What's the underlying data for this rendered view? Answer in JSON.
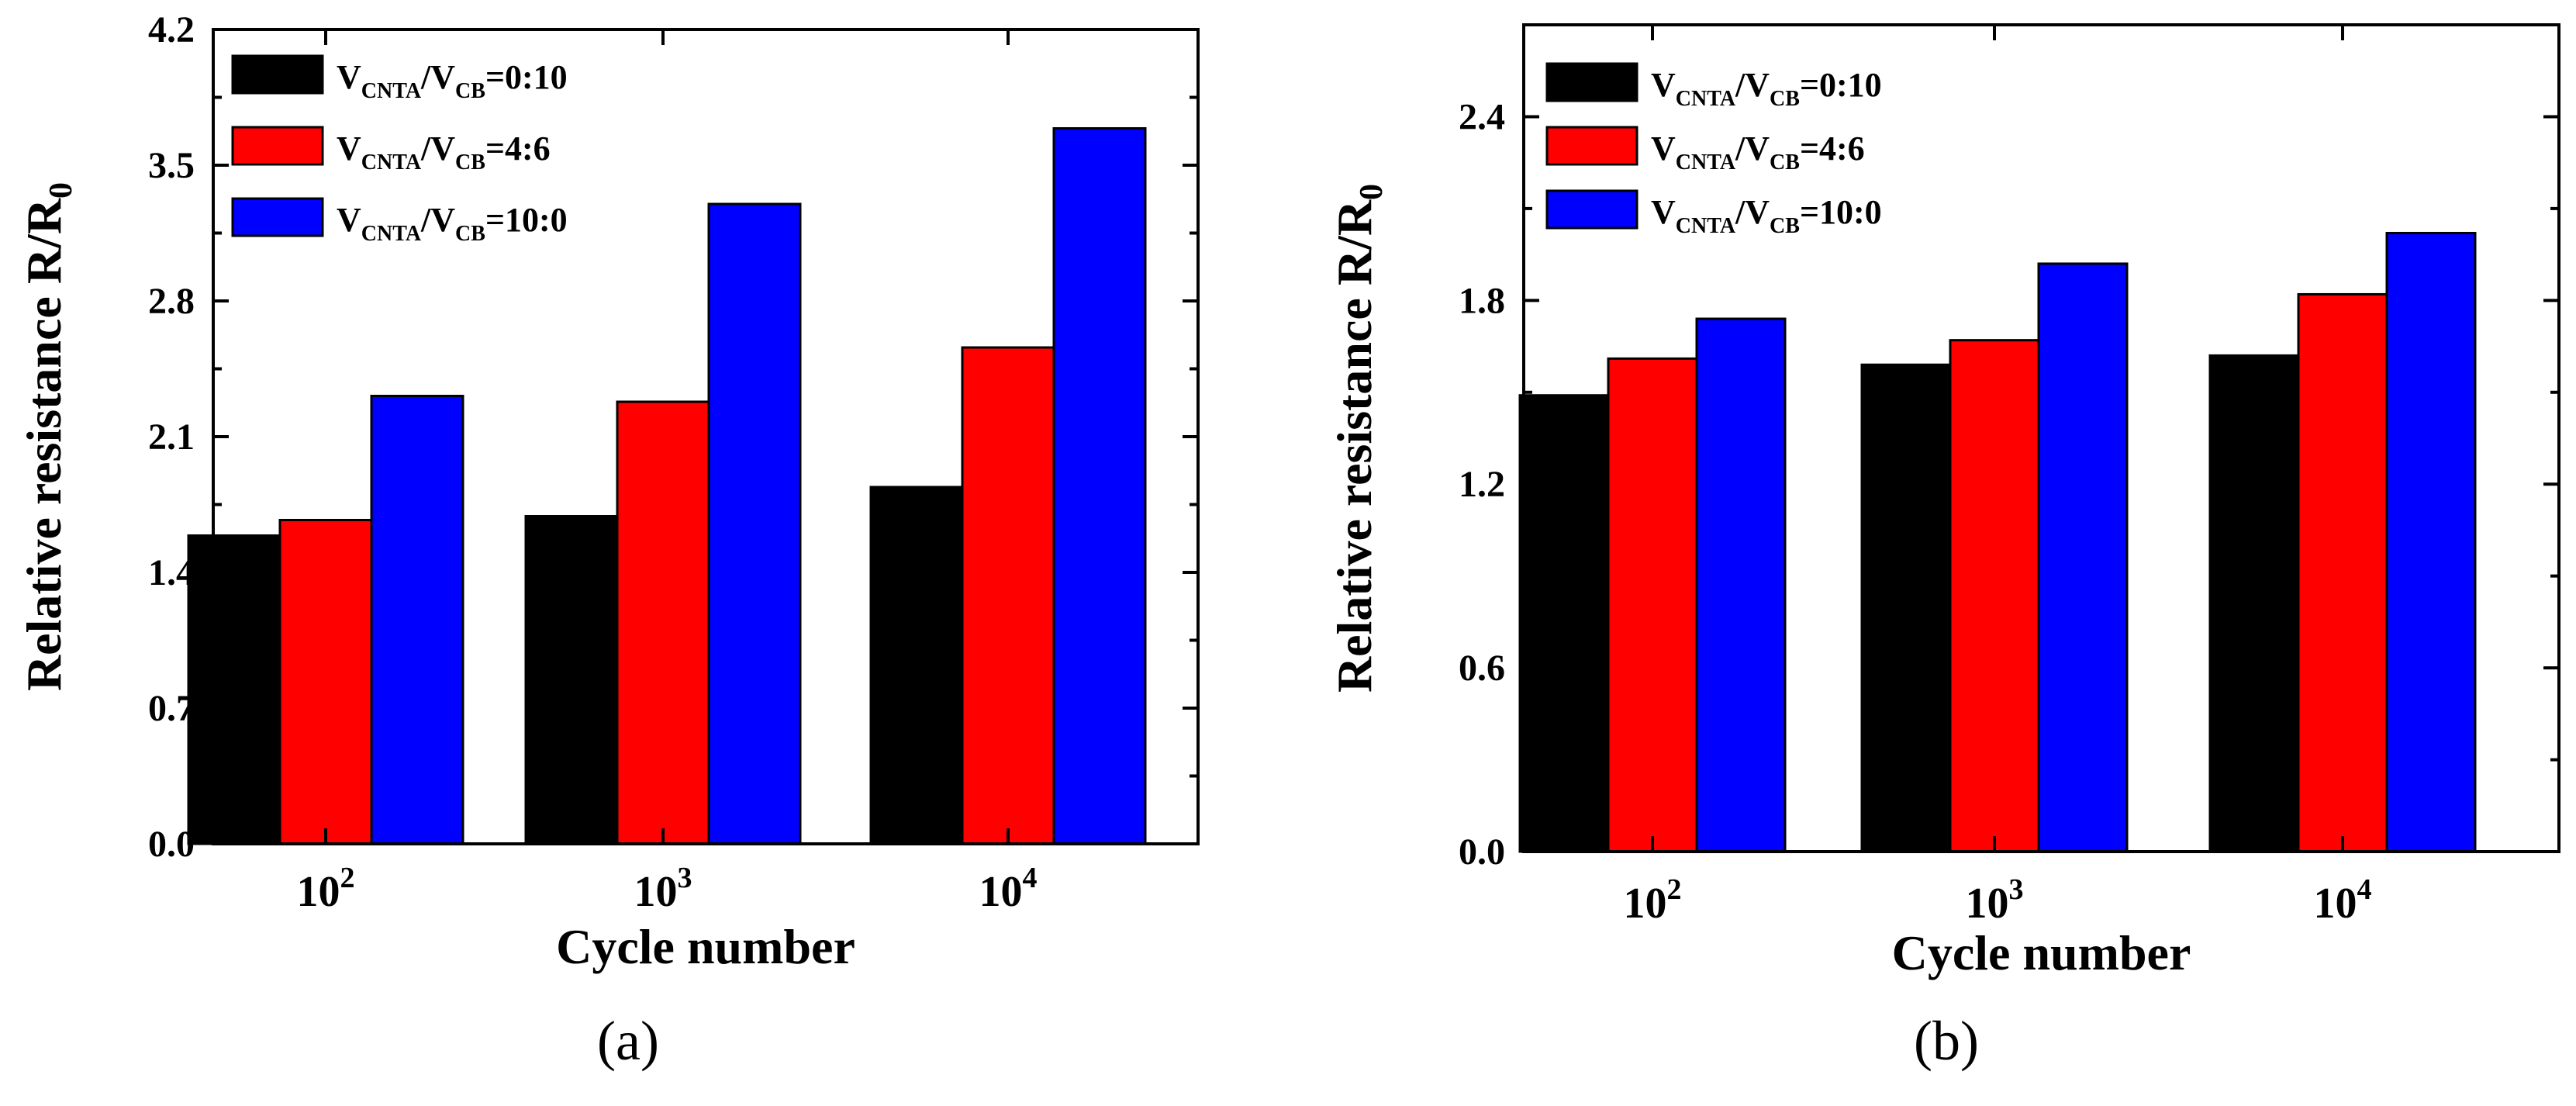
{
  "colors": {
    "series": [
      "#000000",
      "#ff0000",
      "#0000ff"
    ]
  },
  "chart_data": [
    {
      "type": "bar",
      "panel_label": "(a)",
      "xlabel": "Cycle number",
      "ylabel": "Relative resistance R/R",
      "ylabel_sub": "0",
      "categories": [
        {
          "base": "10",
          "exp": "2"
        },
        {
          "base": "10",
          "exp": "3"
        },
        {
          "base": "10",
          "exp": "4"
        }
      ],
      "ylim": [
        0,
        4.2
      ],
      "yticks": [
        "0.0",
        "0.7",
        "1.4",
        "2.1",
        "2.8",
        "3.5",
        "4.2"
      ],
      "legend_position": "top-left",
      "series": [
        {
          "name": "V_CNTA/V_CB=0:10",
          "parts": [
            "V",
            "CNTA",
            "/V",
            "CB",
            "=0:10"
          ],
          "values": [
            1.59,
            1.69,
            1.84
          ]
        },
        {
          "name": "V_CNTA/V_CB=4:6",
          "parts": [
            "V",
            "CNTA",
            "/V",
            "CB",
            "=4:6"
          ],
          "values": [
            1.67,
            2.28,
            2.56
          ]
        },
        {
          "name": "V_CNTA/V_CB=10:0",
          "parts": [
            "V",
            "CNTA",
            "/V",
            "CB",
            "=10:0"
          ],
          "values": [
            2.31,
            3.3,
            3.69
          ]
        }
      ]
    },
    {
      "type": "bar",
      "panel_label": "(b)",
      "xlabel": "Cycle number",
      "ylabel": "Relative resistance R/R",
      "ylabel_sub": "0",
      "categories": [
        {
          "base": "10",
          "exp": "2"
        },
        {
          "base": "10",
          "exp": "3"
        },
        {
          "base": "10",
          "exp": "4"
        }
      ],
      "ylim": [
        0,
        2.7
      ],
      "yticks": [
        "0.0",
        "0.6",
        "1.2",
        "1.8",
        "2.4"
      ],
      "legend_position": "top-left",
      "series": [
        {
          "name": "V_CNTA/V_CB=0:10",
          "parts": [
            "V",
            "CNTA",
            "/V",
            "CB",
            "=0:10"
          ],
          "values": [
            1.49,
            1.59,
            1.62
          ]
        },
        {
          "name": "V_CNTA/V_CB=4:6",
          "parts": [
            "V",
            "CNTA",
            "/V",
            "CB",
            "=4:6"
          ],
          "values": [
            1.61,
            1.67,
            1.82
          ]
        },
        {
          "name": "V_CNTA/V_CB=10:0",
          "parts": [
            "V",
            "CNTA",
            "/V",
            "CB",
            "=10:0"
          ],
          "values": [
            1.74,
            1.92,
            2.02
          ]
        }
      ]
    }
  ]
}
